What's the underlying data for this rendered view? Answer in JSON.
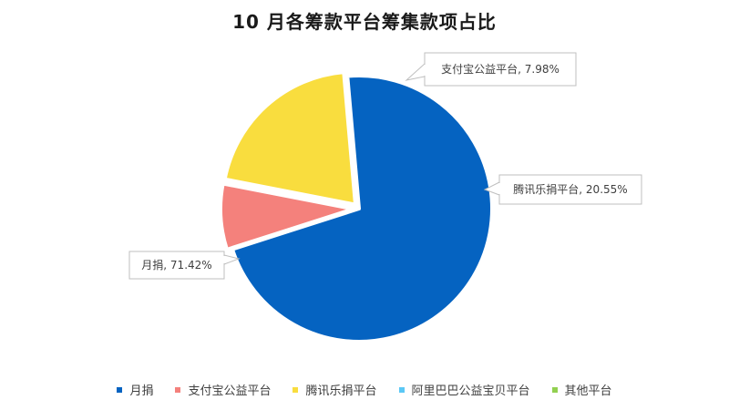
{
  "chart_data": {
    "type": "pie",
    "title": "10 月各筹款平台筹集款项占比",
    "slices": [
      {
        "name": "月捐",
        "value": 71.42,
        "label": "月捐, 71.42%",
        "color": "#0563C1"
      },
      {
        "name": "支付宝公益平台",
        "value": 7.98,
        "label": "支付宝公益平台, 7.98%",
        "color": "#F4817C"
      },
      {
        "name": "腾讯乐捐平台",
        "value": 20.55,
        "label": "腾讯乐捐平台, 20.55%",
        "color": "#F9DD3E"
      },
      {
        "name": "阿里巴巴公益宝贝平台",
        "value": 0.0,
        "label": "",
        "color": "#5BC8F5"
      },
      {
        "name": "其他平台",
        "value": 0.0,
        "label": "",
        "color": "#92D050"
      }
    ],
    "legend": {
      "position": "bottom",
      "entries": [
        "月捐",
        "支付宝公益平台",
        "腾讯乐捐平台",
        "阿里巴巴公益宝贝平台",
        "其他平台"
      ]
    }
  }
}
